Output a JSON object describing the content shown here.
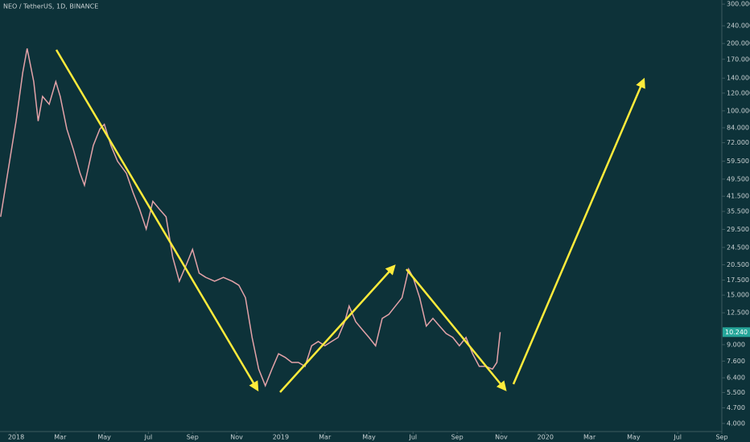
{
  "chart_data": {
    "type": "line",
    "title": "NEO / TetherUS, 1D, BINANCE",
    "log_scale": true,
    "background": "#0d3239",
    "series": [
      {
        "color": "#e3a2a8",
        "x": [
          -0.7,
          0,
          0.3,
          0.5,
          0.8,
          1.0,
          1.2,
          1.5,
          1.8,
          2.0,
          2.3,
          2.6,
          2.9,
          3.1,
          3.5,
          3.8,
          4.0,
          4.3,
          4.6,
          5.0,
          5.3,
          5.6,
          5.9,
          6.2,
          6.5,
          6.8,
          7.1,
          7.4,
          7.7,
          8.0,
          8.3,
          8.6,
          9.0,
          9.4,
          9.8,
          10.1,
          10.4,
          10.7,
          11.0,
          11.3,
          11.6,
          11.9,
          12.2,
          12.5,
          12.8,
          13.1,
          13.4,
          13.7,
          14.0,
          14.3,
          14.6,
          14.9,
          15.1,
          15.4,
          15.7,
          16.0,
          16.3,
          16.6,
          16.9,
          17.2,
          17.5,
          17.8,
          18.0,
          18.3,
          18.6,
          18.9,
          19.2,
          19.5,
          19.8,
          20.1,
          20.4,
          20.7,
          21.0,
          21.3,
          21.6,
          21.8,
          21.95
        ],
        "values": [
          33.6,
          90,
          148,
          190,
          135,
          90,
          116,
          107,
          135,
          116,
          83,
          67,
          52.6,
          46.5,
          70,
          83,
          87,
          70,
          59.5,
          52.6,
          43.2,
          36.3,
          29.6,
          39.4,
          36.3,
          33.6,
          22.2,
          17.3,
          20.3,
          24.0,
          18.8,
          18.0,
          17.3,
          18.0,
          17.3,
          16.6,
          14.6,
          9.7,
          7.0,
          5.9,
          7.0,
          8.2,
          7.9,
          7.5,
          7.5,
          7.2,
          8.9,
          9.3,
          8.9,
          9.3,
          9.7,
          11.4,
          13.4,
          11.4,
          10.5,
          9.7,
          8.9,
          11.8,
          12.3,
          13.4,
          14.6,
          19.6,
          18.0,
          14.6,
          10.9,
          11.8,
          10.9,
          10.1,
          9.7,
          8.9,
          9.7,
          8.2,
          7.2,
          7.2,
          7.0,
          7.5,
          10.24
        ]
      }
    ],
    "last_price": {
      "value": 10.24,
      "label": "10.240"
    },
    "last_price_color": "#26a69a",
    "xlim": [
      -0.73,
      32.0
    ],
    "ylim": [
      3.68,
      313
    ],
    "xticks": [
      {
        "value": 0,
        "label": "2018"
      },
      {
        "value": 2,
        "label": "Mar"
      },
      {
        "value": 4,
        "label": "May"
      },
      {
        "value": 6,
        "label": "Jul"
      },
      {
        "value": 8,
        "label": "Sep"
      },
      {
        "value": 10,
        "label": "Nov"
      },
      {
        "value": 12,
        "label": "2019"
      },
      {
        "value": 14,
        "label": "Mar"
      },
      {
        "value": 16,
        "label": "May"
      },
      {
        "value": 18,
        "label": "Jul"
      },
      {
        "value": 20,
        "label": "Sep"
      },
      {
        "value": 22,
        "label": "Nov"
      },
      {
        "value": 24,
        "label": "2020"
      },
      {
        "value": 26,
        "label": "Mar"
      },
      {
        "value": 28,
        "label": "May"
      },
      {
        "value": 30,
        "label": "Jul"
      },
      {
        "value": 32,
        "label": "Sep"
      }
    ],
    "yticks": [
      {
        "value": 300,
        "label": "300.000"
      },
      {
        "value": 240,
        "label": "240.000"
      },
      {
        "value": 200,
        "label": "200.000"
      },
      {
        "value": 170,
        "label": "170.000"
      },
      {
        "value": 140,
        "label": "140.000"
      },
      {
        "value": 120,
        "label": "120.000"
      },
      {
        "value": 100,
        "label": "100.000"
      },
      {
        "value": 84,
        "label": "84.000"
      },
      {
        "value": 72,
        "label": "72.000"
      },
      {
        "value": 59.5,
        "label": "59.500"
      },
      {
        "value": 49.5,
        "label": "49.500"
      },
      {
        "value": 41.5,
        "label": "41.500"
      },
      {
        "value": 35.5,
        "label": "35.500"
      },
      {
        "value": 29.5,
        "label": "29.500"
      },
      {
        "value": 24.5,
        "label": "24.500"
      },
      {
        "value": 20.5,
        "label": "20.500"
      },
      {
        "value": 17.5,
        "label": "17.500"
      },
      {
        "value": 15,
        "label": "15.000"
      },
      {
        "value": 12.5,
        "label": "12.500"
      },
      {
        "value": 9,
        "label": "9.000"
      },
      {
        "value": 7.6,
        "label": "7.600"
      },
      {
        "value": 6.4,
        "label": "6.400"
      },
      {
        "value": 5.5,
        "label": "5.500"
      },
      {
        "value": 4.7,
        "label": "4.700"
      },
      {
        "value": 4,
        "label": "4.000"
      }
    ]
  }
}
